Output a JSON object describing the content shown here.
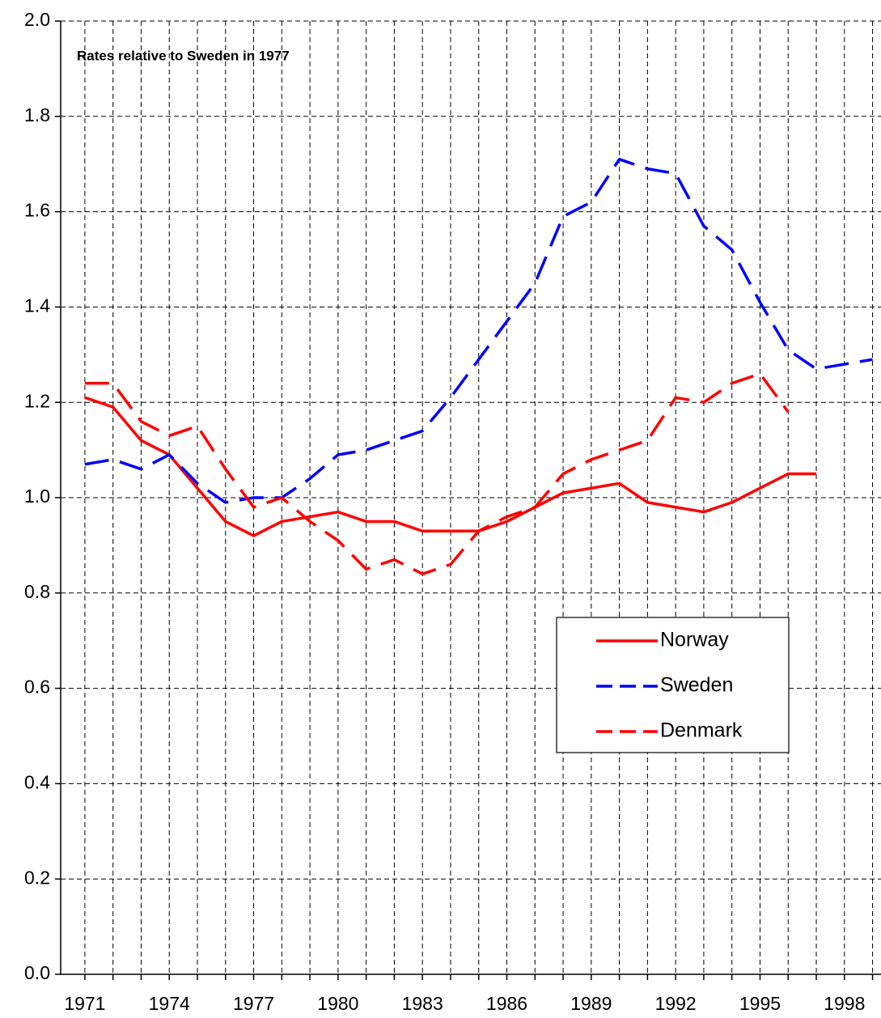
{
  "chart_data": {
    "type": "line",
    "annotation": "Rates relative to Sweden in 1977",
    "x": [
      1971,
      1972,
      1973,
      1974,
      1975,
      1976,
      1977,
      1978,
      1979,
      1980,
      1981,
      1982,
      1983,
      1984,
      1985,
      1986,
      1987,
      1988,
      1989,
      1990,
      1991,
      1992,
      1993,
      1994,
      1995,
      1996,
      1997,
      1998,
      1999
    ],
    "series": [
      {
        "name": "Norway",
        "color": "#ff0000",
        "style": "solid",
        "values": [
          1.21,
          1.19,
          1.12,
          1.09,
          1.02,
          0.95,
          0.92,
          0.95,
          0.96,
          0.97,
          0.95,
          0.95,
          0.93,
          0.93,
          0.93,
          0.95,
          0.98,
          1.01,
          1.02,
          1.03,
          0.99,
          0.98,
          0.97,
          0.99,
          1.02,
          1.05,
          1.05,
          null,
          null
        ]
      },
      {
        "name": "Sweden",
        "color": "#0000ff",
        "style": "dashed",
        "values": [
          1.07,
          1.08,
          1.06,
          1.09,
          1.03,
          0.99,
          1.0,
          1.0,
          1.04,
          1.09,
          1.1,
          1.12,
          1.14,
          1.21,
          1.29,
          1.37,
          1.45,
          1.59,
          1.62,
          1.71,
          1.69,
          1.68,
          1.57,
          1.52,
          1.41,
          1.31,
          1.27,
          1.28,
          1.29
        ]
      },
      {
        "name": "Denmark",
        "color": "#ff0000",
        "style": "dashed",
        "values": [
          1.24,
          1.24,
          1.16,
          1.13,
          1.15,
          1.06,
          0.98,
          1.0,
          0.95,
          0.91,
          0.85,
          0.87,
          0.84,
          0.86,
          0.93,
          0.96,
          0.98,
          1.05,
          1.08,
          1.1,
          1.12,
          1.21,
          1.2,
          1.24,
          1.26,
          1.18,
          null,
          null,
          null
        ]
      }
    ],
    "xlim": [
      1970.14,
      1999.3
    ],
    "xticks": [
      1971,
      1974,
      1977,
      1980,
      1983,
      1986,
      1989,
      1992,
      1995,
      1998
    ],
    "xminorticks": [
      1971,
      1972,
      1973,
      1974,
      1975,
      1976,
      1977,
      1978,
      1979,
      1980,
      1981,
      1982,
      1983,
      1984,
      1985,
      1986,
      1987,
      1988,
      1989,
      1990,
      1991,
      1992,
      1993,
      1994,
      1995,
      1996,
      1997,
      1998,
      1999
    ],
    "ylim": [
      0,
      2
    ],
    "yticks": [
      {
        "value": 0,
        "label": "0.0"
      },
      0.2,
      0.4,
      0.6,
      0.8,
      {
        "value": 1,
        "label": "1.0"
      },
      1.2,
      1.4,
      1.6,
      1.8,
      {
        "value": 2,
        "label": "2.0"
      }
    ],
    "grid": true,
    "legend": "center-right"
  }
}
